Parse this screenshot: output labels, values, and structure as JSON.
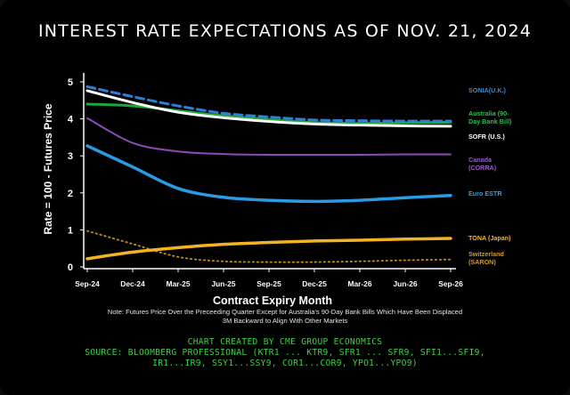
{
  "page": {
    "title": "INTEREST RATE EXPECTATIONS AS OF NOV. 21, 2024",
    "note_line1": "Note: Futures Price Over the Preceeding Quarter Except for Australia's 90-Day Bank Bills Which Have Been Displaced",
    "note_line2": "3M Backward to Align With Other Markets",
    "credit_line1": "CHART CREATED BY CME GROUP ECONOMICS",
    "credit_line2": "SOURCE: BLOOMBERG PROFESSIONAL (KTR1 ... KTR9, SFR1 ... SFR9, SFI1...SFI9,",
    "credit_line3": "IR1...IR9, SSY1...SSY9, COR1...COR9, YPO1...YPO9)"
  },
  "chart_data": {
    "type": "line",
    "title": "INTEREST RATE EXPECTATIONS AS OF NOV. 21, 2024",
    "xlabel": "Contract Expiry Month",
    "ylabel": "Rate = 100 - Futures Price",
    "categories": [
      "Sep-24",
      "Dec-24",
      "Mar-25",
      "Jun-25",
      "Sep-25",
      "Dec-25",
      "Mar-26",
      "Jun-26",
      "Sep-26"
    ],
    "ylim": [
      0,
      5
    ],
    "yticks": [
      0,
      1,
      2,
      3,
      4,
      5
    ],
    "grid": false,
    "legend": "labels at right end of each series",
    "series": [
      {
        "name": "SONIA(U.K.)",
        "color": "#2f7fd6",
        "dash": true,
        "width": 3,
        "values": [
          4.87,
          4.6,
          4.35,
          4.15,
          4.05,
          3.97,
          3.95,
          3.94,
          3.94
        ]
      },
      {
        "name": "Australia (90-Day Bank Bill)",
        "color": "#1ea83c",
        "dash": false,
        "width": 3,
        "values": [
          4.4,
          4.35,
          4.22,
          4.08,
          3.98,
          3.9,
          3.88,
          3.89,
          3.91
        ]
      },
      {
        "name": "SOFR (U.S.)",
        "color": "#ffffff",
        "dash": false,
        "width": 3,
        "values": [
          4.76,
          4.44,
          4.18,
          4.03,
          3.93,
          3.86,
          3.83,
          3.81,
          3.8
        ]
      },
      {
        "name": "Canada (CORRA)",
        "color": "#8c4bb8",
        "dash": false,
        "width": 2,
        "values": [
          4.02,
          3.35,
          3.12,
          3.05,
          3.03,
          3.03,
          3.03,
          3.04,
          3.04
        ]
      },
      {
        "name": "Euro ESTR",
        "color": "#2b9be6",
        "dash": false,
        "width": 3.5,
        "values": [
          3.27,
          2.7,
          2.12,
          1.88,
          1.8,
          1.77,
          1.8,
          1.87,
          1.93
        ]
      },
      {
        "name": "TONA (Japan)",
        "color": "#f4b323",
        "dash": false,
        "width": 3.5,
        "values": [
          0.22,
          0.4,
          0.52,
          0.61,
          0.66,
          0.7,
          0.72,
          0.75,
          0.77
        ]
      },
      {
        "name": "Switzerland (SARON)",
        "color": "#c68c16",
        "dash": true,
        "width": 1.8,
        "values": [
          0.97,
          0.62,
          0.27,
          0.15,
          0.13,
          0.13,
          0.15,
          0.18,
          0.2
        ]
      }
    ],
    "label_colors": {
      "SONIA(U.K.)": "#2f8de8",
      "Australia (90-Day Bank Bill)": "#29c14b",
      "SOFR (U.S.)": "#ffffff",
      "Canada (CORRA)": "#9a5cc8",
      "Euro ESTR": "#2ba3f0",
      "TONA (Japan)": "#f6b428",
      "Switzerland (SARON)": "#d19a2a"
    },
    "label_lines": {
      "SONIA(U.K.)": [
        "SONIA(U.K.)"
      ],
      "Australia (90-Day Bank Bill)": [
        "Australia (90-",
        "Day Bank Bill)"
      ],
      "SOFR (U.S.)": [
        "SOFR (U.S.)"
      ],
      "Canada (CORRA)": [
        "Canada",
        "(CORRA)"
      ],
      "Euro ESTR": [
        "Euro ESTR"
      ],
      "TONA (Japan)": [
        "TONA (Japan)"
      ],
      "Switzerland (SARON)": [
        "Switzerland",
        "(SARON)"
      ]
    }
  }
}
